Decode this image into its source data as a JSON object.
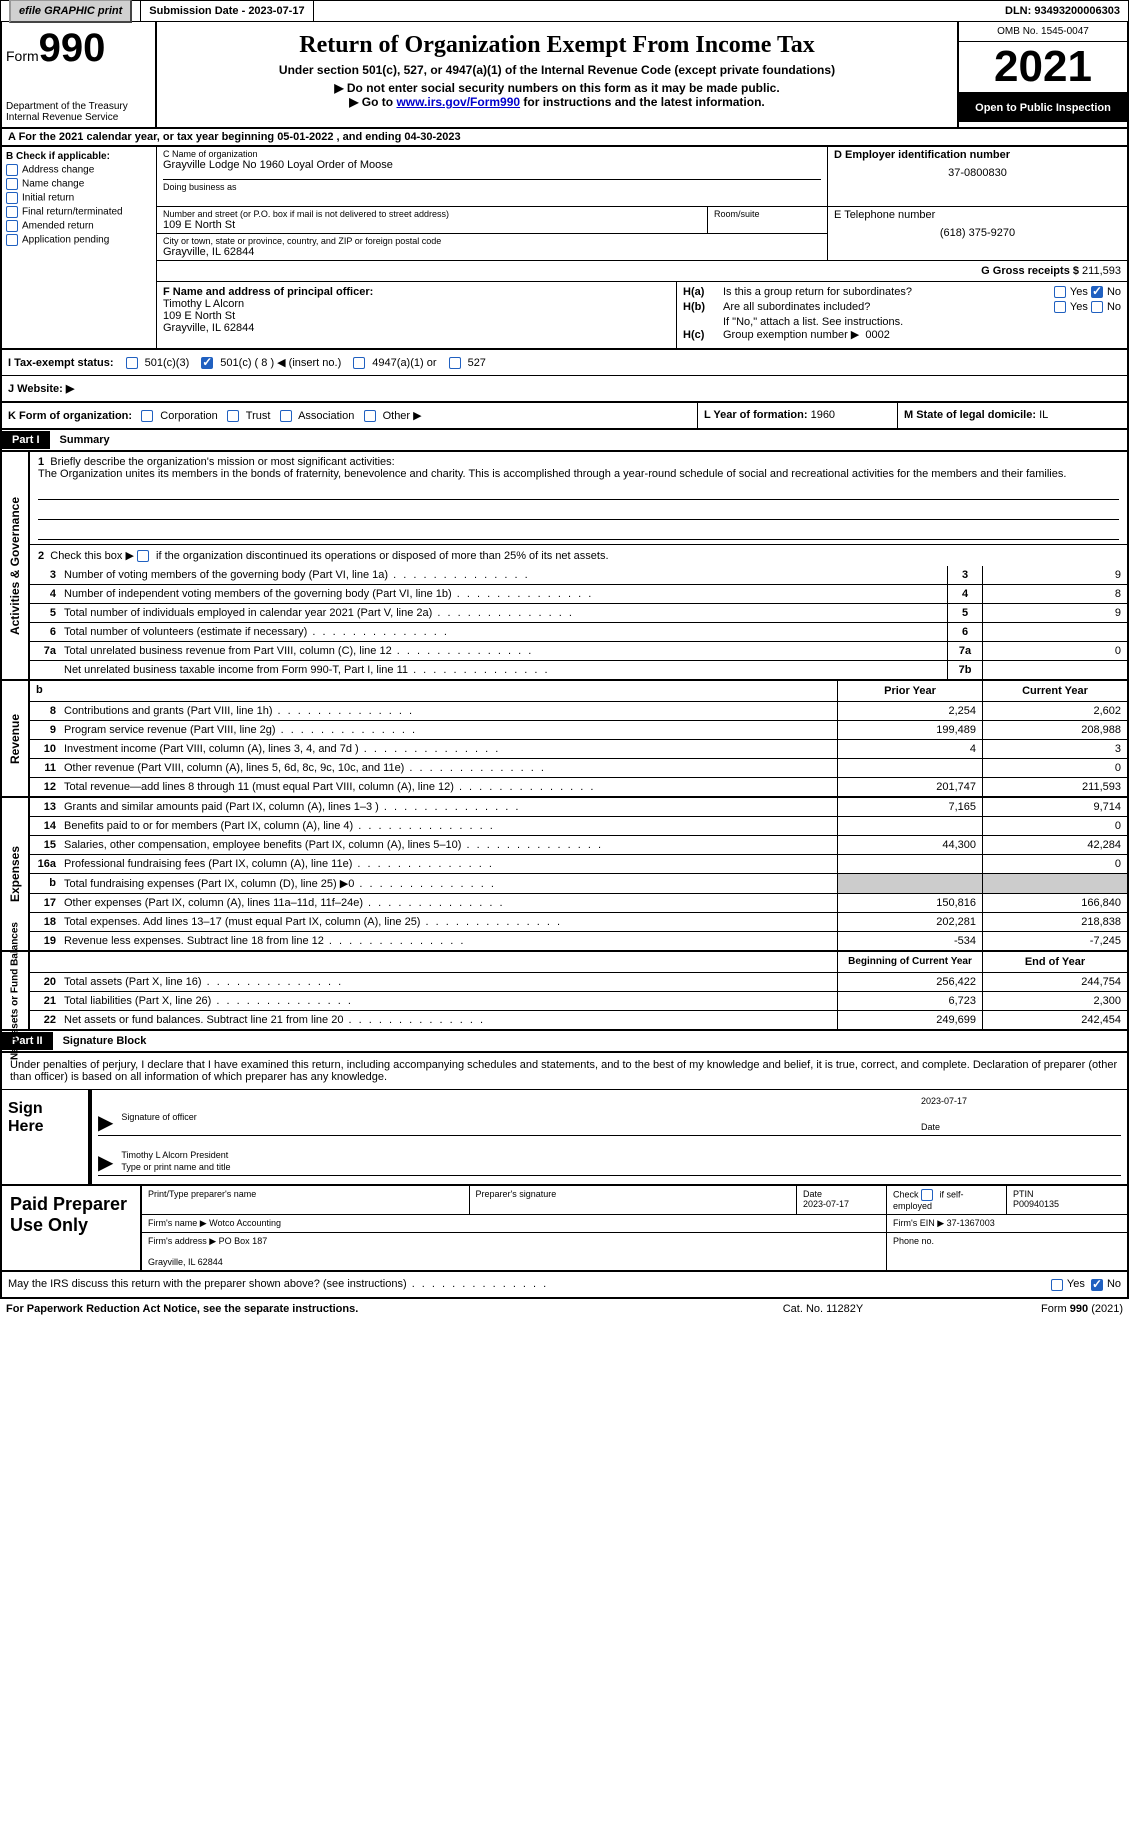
{
  "top": {
    "efile": "efile GRAPHIC print",
    "sub_label": "Submission Date - 2023-07-17",
    "dln": "DLN: 93493200006303"
  },
  "header": {
    "form": "Form",
    "num": "990",
    "title": "Return of Organization Exempt From Income Tax",
    "subtitle": "Under section 501(c), 527, or 4947(a)(1) of the Internal Revenue Code (except private foundations)",
    "ssn_note": "Do not enter social security numbers on this form as it may be made public.",
    "goto": "Go to www.irs.gov/Form990 for instructions and the latest information.",
    "dept": "Department of the Treasury\nInternal Revenue Service",
    "omb": "OMB No. 1545-0047",
    "year": "2021",
    "open": "Open to Public Inspection"
  },
  "rowA": "A  For the 2021 calendar year, or tax year beginning 05-01-2022   , and ending 04-30-2023",
  "B": {
    "title": "B Check if applicable:",
    "items": [
      "Address change",
      "Name change",
      "Initial return",
      "Final return/terminated",
      "Amended return",
      "Application pending"
    ]
  },
  "C": {
    "name_label": "C Name of organization",
    "name": "Grayville Lodge No 1960 Loyal Order of Moose",
    "dba_label": "Doing business as",
    "street_label": "Number and street (or P.O. box if mail is not delivered to street address)",
    "street": "109 E North St",
    "room_label": "Room/suite",
    "city_label": "City or town, state or province, country, and ZIP or foreign postal code",
    "city": "Grayville, IL  62844"
  },
  "D": {
    "label": "D Employer identification number",
    "ein": "37-0800830"
  },
  "E": {
    "label": "E Telephone number",
    "tel": "(618) 375-9270"
  },
  "G": {
    "label": "G Gross receipts $",
    "val": "211,593"
  },
  "F": {
    "label": "F Name and address of principal officer:",
    "name": "Timothy L Alcorn",
    "addr": "109 E North St\nGrayville, IL  62844"
  },
  "H": {
    "a_label": "H(a)",
    "a_text": "Is this a group return for subordinates?",
    "a_no": true,
    "b_label": "H(b)",
    "b_text": "Are all subordinates included?",
    "b_note": "If \"No,\" attach a list. See instructions.",
    "c_label": "H(c)",
    "c_text": "Group exemption number ▶",
    "c_val": "0002"
  },
  "I": {
    "label": "I   Tax-exempt status:",
    "insert": "( 8 ) ◀ (insert no.)"
  },
  "J": {
    "label": "J   Website: ▶"
  },
  "K": {
    "label": "K Form of organization:",
    "opts": [
      "Corporation",
      "Trust",
      "Association",
      "Other ▶"
    ]
  },
  "L": {
    "label": "L Year of formation:",
    "val": "1960"
  },
  "M": {
    "label": "M State of legal domicile:",
    "val": "IL"
  },
  "part1": {
    "header": "Part I",
    "title": "Summary",
    "q1": "Briefly describe the organization's mission or most significant activities:",
    "mission": "The Organization unites its members in the bonds of fraternity, benevolence and charity. This is accomplished through a year-round schedule of social and recreational activities for the members and their families.",
    "q2": "Check this box ▶        if the organization discontinued its operations or disposed of more than 25% of its net assets.",
    "lines_ag": [
      {
        "n": "3",
        "t": "Number of voting members of the governing body (Part VI, line 1a)",
        "b": "3",
        "v": "9"
      },
      {
        "n": "4",
        "t": "Number of independent voting members of the governing body (Part VI, line 1b)",
        "b": "4",
        "v": "8"
      },
      {
        "n": "5",
        "t": "Total number of individuals employed in calendar year 2021 (Part V, line 2a)",
        "b": "5",
        "v": "9"
      },
      {
        "n": "6",
        "t": "Total number of volunteers (estimate if necessary)",
        "b": "6",
        "v": ""
      },
      {
        "n": "7a",
        "t": "Total unrelated business revenue from Part VIII, column (C), line 12",
        "b": "7a",
        "v": "0"
      },
      {
        "n": "",
        "t": "Net unrelated business taxable income from Form 990-T, Part I, line 11",
        "b": "7b",
        "v": ""
      }
    ],
    "hdr_prior": "Prior Year",
    "hdr_curr": "Current Year",
    "revenue": [
      {
        "n": "8",
        "t": "Contributions and grants (Part VIII, line 1h)",
        "p": "2,254",
        "c": "2,602"
      },
      {
        "n": "9",
        "t": "Program service revenue (Part VIII, line 2g)",
        "p": "199,489",
        "c": "208,988"
      },
      {
        "n": "10",
        "t": "Investment income (Part VIII, column (A), lines 3, 4, and 7d )",
        "p": "4",
        "c": "3"
      },
      {
        "n": "11",
        "t": "Other revenue (Part VIII, column (A), lines 5, 6d, 8c, 9c, 10c, and 11e)",
        "p": "",
        "c": "0"
      },
      {
        "n": "12",
        "t": "Total revenue—add lines 8 through 11 (must equal Part VIII, column (A), line 12)",
        "p": "201,747",
        "c": "211,593"
      }
    ],
    "expenses": [
      {
        "n": "13",
        "t": "Grants and similar amounts paid (Part IX, column (A), lines 1–3 )",
        "p": "7,165",
        "c": "9,714"
      },
      {
        "n": "14",
        "t": "Benefits paid to or for members (Part IX, column (A), line 4)",
        "p": "",
        "c": "0"
      },
      {
        "n": "15",
        "t": "Salaries, other compensation, employee benefits (Part IX, column (A), lines 5–10)",
        "p": "44,300",
        "c": "42,284"
      },
      {
        "n": "16a",
        "t": "Professional fundraising fees (Part IX, column (A), line 11e)",
        "p": "",
        "c": "0"
      },
      {
        "n": "b",
        "t": "Total fundraising expenses (Part IX, column (D), line 25) ▶0",
        "p": "shaded",
        "c": "shaded"
      },
      {
        "n": "17",
        "t": "Other expenses (Part IX, column (A), lines 11a–11d, 11f–24e)",
        "p": "150,816",
        "c": "166,840"
      },
      {
        "n": "18",
        "t": "Total expenses. Add lines 13–17 (must equal Part IX, column (A), line 25)",
        "p": "202,281",
        "c": "218,838"
      },
      {
        "n": "19",
        "t": "Revenue less expenses. Subtract line 18 from line 12",
        "p": "-534",
        "c": "-7,245"
      }
    ],
    "hdr_begin": "Beginning of Current Year",
    "hdr_end": "End of Year",
    "netassets": [
      {
        "n": "20",
        "t": "Total assets (Part X, line 16)",
        "p": "256,422",
        "c": "244,754"
      },
      {
        "n": "21",
        "t": "Total liabilities (Part X, line 26)",
        "p": "6,723",
        "c": "2,300"
      },
      {
        "n": "22",
        "t": "Net assets or fund balances. Subtract line 21 from line 20",
        "p": "249,699",
        "c": "242,454"
      }
    ]
  },
  "part2": {
    "header": "Part II",
    "title": "Signature Block",
    "declare": "Under penalties of perjury, I declare that I have examined this return, including accompanying schedules and statements, and to the best of my knowledge and belief, it is true, correct, and complete. Declaration of preparer (other than officer) is based on all information of which preparer has any knowledge.",
    "sign_here": "Sign Here",
    "sig_officer": "Signature of officer",
    "date_label": "Date",
    "date_val": "2023-07-17",
    "typed": "Timothy L Alcorn  President",
    "typed_label": "Type or print name and title"
  },
  "prep": {
    "title": "Paid Preparer Use Only",
    "r1": {
      "c1": "Print/Type preparer's name",
      "c2": "Preparer's signature",
      "c3": "Date\n2023-07-17",
      "c4": "Check        if self-employed",
      "c5": "PTIN\nP00940135"
    },
    "r2": {
      "label": "Firm's name    ▶",
      "val": "Wotco Accounting",
      "ein_label": "Firm's EIN ▶",
      "ein": "37-1367003"
    },
    "r3": {
      "label": "Firm's address ▶",
      "val": "PO Box 187\n\nGrayville, IL  62844",
      "ph_label": "Phone no."
    }
  },
  "may_irs": "May the IRS discuss this return with the preparer shown above? (see instructions)",
  "footer": {
    "left": "For Paperwork Reduction Act Notice, see the separate instructions.",
    "mid": "Cat. No. 11282Y",
    "right": "Form 990 (2021)"
  }
}
